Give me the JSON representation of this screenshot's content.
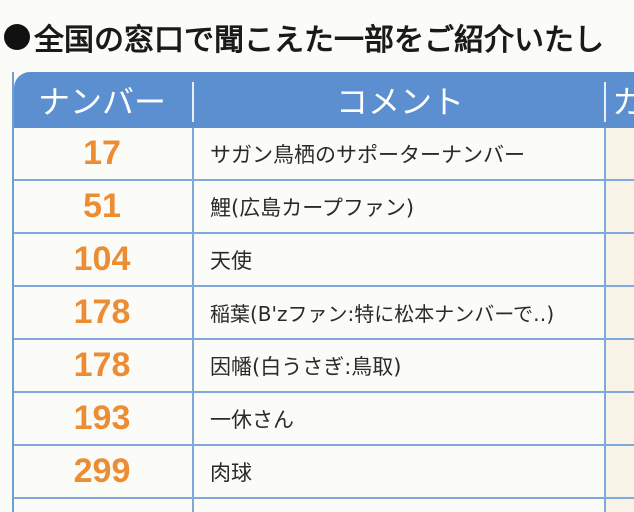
{
  "heading": {
    "text": "全国の窓口で聞こえた一部をご紹介いたし"
  },
  "table": {
    "headers": {
      "number": "ナンバー",
      "comment": "コメント",
      "third": "カ"
    },
    "rows": [
      {
        "number": "17",
        "comment": "サガン鳥栖のサポーターナンバー"
      },
      {
        "number": "51",
        "comment": "鯉(広島カープファン)"
      },
      {
        "number": "104",
        "comment": "天使"
      },
      {
        "number": "178",
        "comment": "稲葉(B'zファン:特に松本ナンバーで‥)"
      },
      {
        "number": "178",
        "comment": "因幡(白うさぎ:鳥取)"
      },
      {
        "number": "193",
        "comment": "一休さん"
      },
      {
        "number": "299",
        "comment": "肉球"
      }
    ]
  },
  "colors": {
    "header_bg": "#5b8fd0",
    "number_text": "#ec8d34",
    "grid_line": "#7fa8dc"
  }
}
